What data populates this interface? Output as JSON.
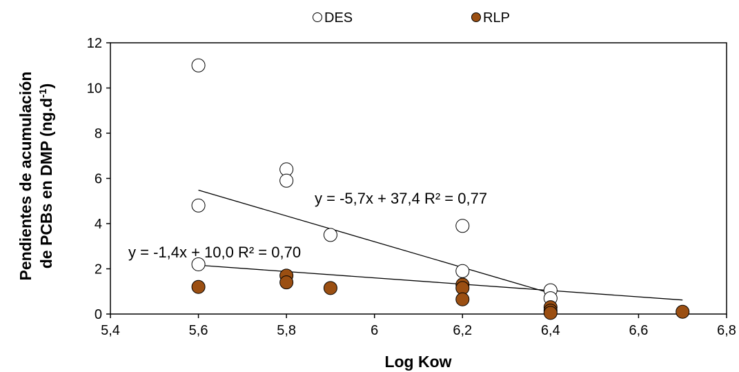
{
  "chart_data": {
    "type": "scatter",
    "xlabel": "Log Kow",
    "ylabel_line1": "Pendientes de acumulación",
    "ylabel_line2_prefix": "de PCBs en DMP (ng.d",
    "ylabel_line2_sup": "-1",
    "ylabel_line2_suffix": ")",
    "xlim": [
      5.4,
      6.8
    ],
    "ylim": [
      0,
      12
    ],
    "x_ticks": [
      "5,4",
      "5,6",
      "5,8",
      "6",
      "6,2",
      "6,4",
      "6,6",
      "6,8"
    ],
    "y_ticks": [
      "0",
      "2",
      "4",
      "6",
      "8",
      "10",
      "12"
    ],
    "grid": false,
    "legend_position": "top",
    "series": [
      {
        "name": "DES",
        "color": "#ffffff",
        "x": [
          5.6,
          5.6,
          5.6,
          5.8,
          5.8,
          5.9,
          6.2,
          6.2,
          6.4,
          6.4
        ],
        "y": [
          11.0,
          4.8,
          2.2,
          6.4,
          5.9,
          3.5,
          3.9,
          1.9,
          1.05,
          0.7
        ],
        "trend": {
          "slope": -5.7,
          "intercept": 37.4,
          "x_range": [
            5.6,
            6.4
          ]
        },
        "equation": "y = -5,7x + 37,4 R² = 0,77"
      },
      {
        "name": "RLP",
        "color": "#9b4f12",
        "x": [
          5.6,
          5.8,
          5.8,
          5.9,
          6.2,
          6.2,
          6.2,
          6.4,
          6.4,
          6.4,
          6.7
        ],
        "y": [
          1.2,
          1.7,
          1.4,
          1.15,
          1.3,
          1.15,
          0.65,
          0.3,
          0.15,
          0.05,
          0.1
        ],
        "trend": {
          "slope": -1.4,
          "intercept": 10.0,
          "x_range": [
            5.6,
            6.7
          ]
        },
        "equation": "y = -1,4x + 10,0 R² = 0,70"
      }
    ]
  }
}
